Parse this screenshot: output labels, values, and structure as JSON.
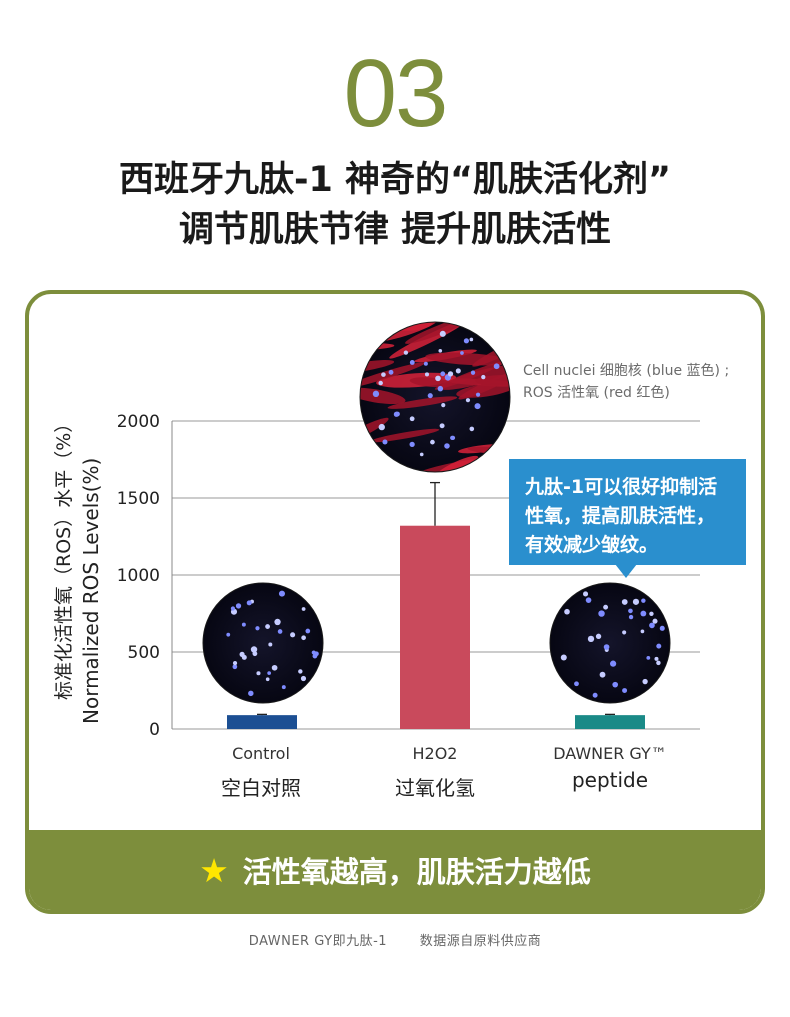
{
  "step_number": "03",
  "headline": {
    "line1": "西班牙九肽-1  神奇的“肌肤活化剂”",
    "line2": "调节肌肤节律  提升肌肤活性"
  },
  "legend": {
    "line1": "Cell nuclei 细胞核 (blue 蓝色) ;",
    "line2": "ROS 活性氧 (red 红色)"
  },
  "callout": {
    "line1": "九肽-1可以很好抑制活",
    "line2": "性氧，提高肌肤活性，",
    "line3": "有效减少皱纹。"
  },
  "footer": {
    "star_icon": "star-icon",
    "text": "活性氧越高，肌肤活力越低"
  },
  "source_note": {
    "left": "DAWNER GY即九肽-1",
    "right": "数据源自原料供应商"
  },
  "colors": {
    "brand_green": "#7d8e3c",
    "callout_blue": "#2a8fce",
    "control_bar": "#1c4f93",
    "h2o2_bar": "#c94a5c",
    "peptide_bar": "#1a8a87",
    "star": "#ffe600"
  },
  "chart_data": {
    "type": "bar",
    "categories": [
      "Control",
      "H2O2",
      "DAWNER GY™"
    ],
    "categories_zh": [
      "空白对照",
      "过氧化氢",
      "peptide"
    ],
    "values": [
      90,
      1320,
      90
    ],
    "error": [
      5,
      280,
      5
    ],
    "ylabel_zh": "标准化活性氧（ROS）水平（%）",
    "ylabel": "Normalized ROS Levels(%)",
    "ylim": [
      0,
      2000
    ],
    "yticks": [
      0,
      500,
      1000,
      1500,
      2000
    ],
    "grid": true,
    "image_insets": [
      "nuclei-only micrograph",
      "ROS-stained micrograph",
      "nuclei-only micrograph"
    ]
  }
}
